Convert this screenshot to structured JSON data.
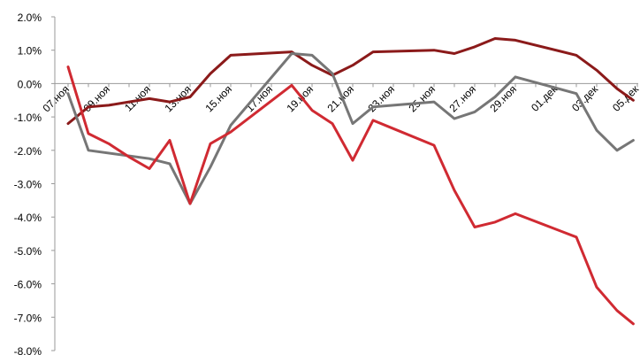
{
  "chart_data": {
    "type": "line",
    "title": "",
    "xlabel": "",
    "ylabel": "",
    "ylim": [
      -8.0,
      2.0
    ],
    "yticks": [
      "2.0%",
      "1.0%",
      "0.0%",
      "-1.0%",
      "-2.0%",
      "-3.0%",
      "-4.0%",
      "-5.0%",
      "-6.0%",
      "-7.0%",
      "-8.0%"
    ],
    "yticks_values": [
      2,
      1,
      0,
      -1,
      -2,
      -3,
      -4,
      -5,
      -6,
      -7,
      -8
    ],
    "xtick_labels": [
      "07.ноя",
      "09.ноя",
      "11.ноя",
      "13.ноя",
      "15.ноя",
      "17.ноя",
      "19.ноя",
      "21.ноя",
      "23.ноя",
      "25.ноя",
      "27.ноя",
      "29.ноя",
      "01.дек",
      "03.дек",
      "05.дек"
    ],
    "grid": false,
    "legend": "none",
    "series": [
      {
        "color": "#8b1a1a",
        "points": [
          [
            0,
            -1.2
          ],
          [
            1,
            -0.7
          ],
          [
            2,
            -0.65
          ],
          [
            3,
            -0.55
          ],
          [
            4,
            -0.45
          ],
          [
            5,
            -0.55
          ],
          [
            6,
            -0.4
          ],
          [
            7,
            0.3
          ],
          [
            8,
            0.85
          ],
          [
            11,
            0.95
          ],
          [
            12,
            0.55
          ],
          [
            13,
            0.25
          ],
          [
            14,
            0.55
          ],
          [
            15,
            0.95
          ],
          [
            18,
            1.0
          ],
          [
            19,
            0.9
          ],
          [
            20,
            1.1
          ],
          [
            21,
            1.35
          ],
          [
            22,
            1.3
          ],
          [
            25,
            0.85
          ],
          [
            26,
            0.4
          ],
          [
            27,
            -0.15
          ],
          [
            27.8,
            -0.5
          ]
        ]
      },
      {
        "color": "#767676",
        "points": [
          [
            0,
            -0.3
          ],
          [
            1,
            -2.0
          ],
          [
            4,
            -2.25
          ],
          [
            5,
            -2.4
          ],
          [
            6,
            -3.6
          ],
          [
            7,
            -2.5
          ],
          [
            8,
            -1.25
          ],
          [
            11,
            0.9
          ],
          [
            12,
            0.85
          ],
          [
            13,
            0.3
          ],
          [
            14,
            -1.2
          ],
          [
            15,
            -0.7
          ],
          [
            18,
            -0.55
          ],
          [
            19,
            -1.05
          ],
          [
            20,
            -0.85
          ],
          [
            21,
            -0.4
          ],
          [
            22,
            0.2
          ],
          [
            25,
            -0.3
          ],
          [
            26,
            -1.4
          ],
          [
            27,
            -2.0
          ],
          [
            27.8,
            -1.7
          ]
        ]
      },
      {
        "color": "#d02a32",
        "points": [
          [
            0,
            0.5
          ],
          [
            1,
            -1.5
          ],
          [
            2,
            -1.8
          ],
          [
            3,
            -2.2
          ],
          [
            4,
            -2.55
          ],
          [
            5,
            -1.7
          ],
          [
            6,
            -3.6
          ],
          [
            7,
            -1.8
          ],
          [
            8,
            -1.45
          ],
          [
            11,
            -0.05
          ],
          [
            12,
            -0.8
          ],
          [
            13,
            -1.2
          ],
          [
            14,
            -2.3
          ],
          [
            15,
            -1.1
          ],
          [
            16,
            -1.35
          ],
          [
            18,
            -1.85
          ],
          [
            19,
            -3.2
          ],
          [
            20,
            -4.3
          ],
          [
            21,
            -4.15
          ],
          [
            22,
            -3.9
          ],
          [
            25,
            -4.6
          ],
          [
            26,
            -6.1
          ],
          [
            27,
            -6.8
          ],
          [
            27.8,
            -7.2
          ]
        ]
      }
    ]
  }
}
